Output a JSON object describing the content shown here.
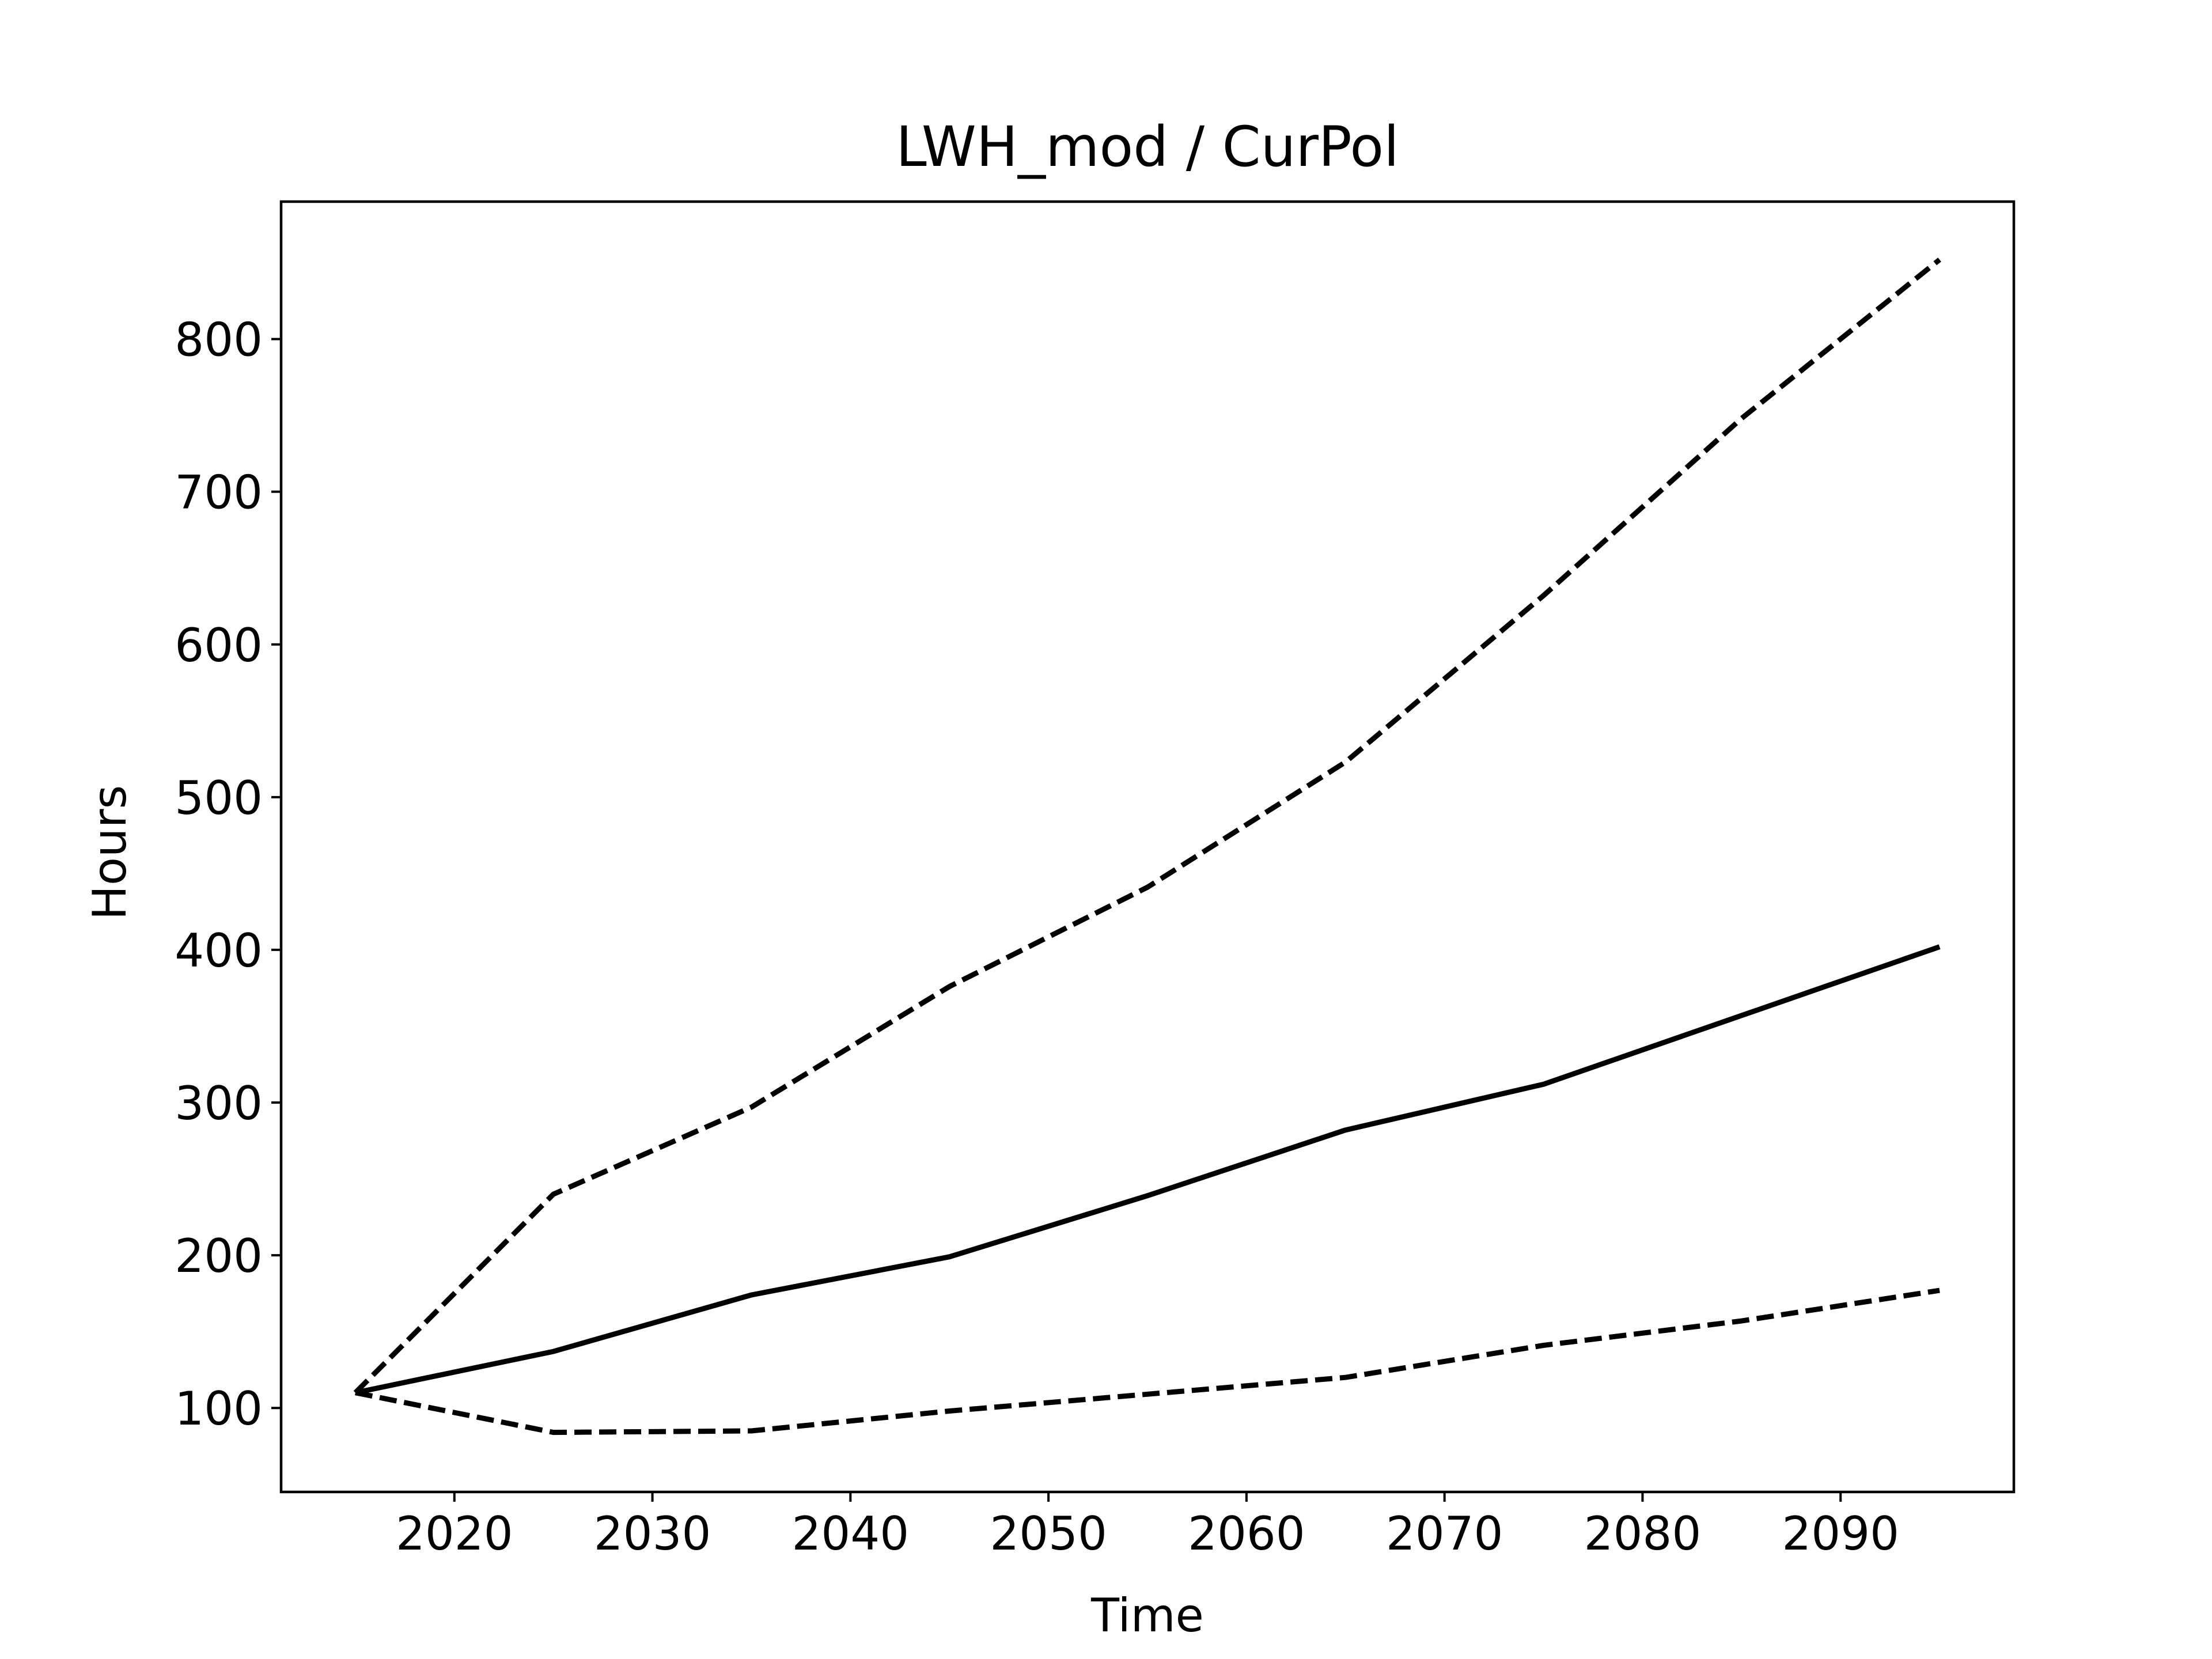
{
  "chart_data": {
    "type": "line",
    "title": "LWH_mod / CurPol",
    "xlabel": "Time",
    "ylabel": "Hours",
    "xlim": [
      2011.25,
      2098.75
    ],
    "ylim": [
      45,
      890
    ],
    "grid": false,
    "xticks": [
      2020,
      2030,
      2040,
      2050,
      2060,
      2070,
      2080,
      2090
    ],
    "yticks": [
      100,
      200,
      300,
      400,
      500,
      600,
      700,
      800
    ],
    "x": [
      2015,
      2025,
      2035,
      2045,
      2055,
      2065,
      2075,
      2085,
      2095
    ],
    "series": [
      {
        "style": "solid",
        "color": "#000000",
        "values": [
          110,
          137,
          174,
          199,
          239,
          282,
          312,
          357,
          402
        ]
      },
      {
        "style": "dashed",
        "color": "#000000",
        "values": [
          110,
          240,
          297,
          376,
          441,
          523,
          632,
          748,
          852
        ]
      },
      {
        "style": "dashed",
        "color": "#000000",
        "values": [
          110,
          84,
          85,
          98,
          109,
          120,
          141,
          157,
          177
        ]
      }
    ]
  }
}
